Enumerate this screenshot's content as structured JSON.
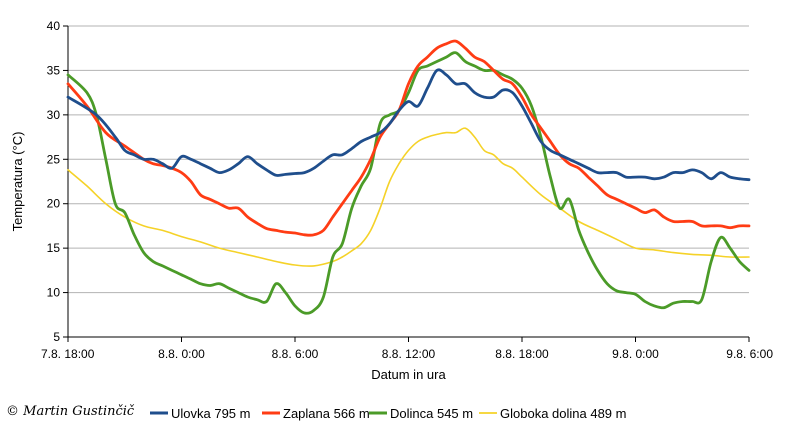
{
  "copyright": "© Martin Gustinčič",
  "chart_data": {
    "type": "line",
    "xlabel": "Datum in ura",
    "ylabel": "Temperatura (°C)",
    "ylim": [
      5,
      40
    ],
    "y_ticks": [
      5,
      10,
      15,
      20,
      25,
      30,
      35,
      40
    ],
    "x_range": [
      "7.8. 18:00",
      "9.8. 6:00"
    ],
    "x_ticks": [
      "7.8. 18:00",
      "8.8. 0:00",
      "8.8. 6:00",
      "8.8. 12:00",
      "8.8. 18:00",
      "9.8. 0:00",
      "9.8. 6:00"
    ],
    "grid": "horizontal",
    "legend_position": "bottom",
    "series": [
      {
        "name": "Ulovka 795 m",
        "color": "#1f4e8c",
        "x": [
          "7.8. 18:00",
          "7.8. 19:30",
          "7.8. 20:30",
          "7.8. 21:00",
          "7.8. 21:30",
          "7.8. 22:00",
          "7.8. 22:30",
          "7.8. 23:00",
          "7.8. 23:30",
          "8.8. 0:00",
          "8.8. 0:30",
          "8.8. 1:00",
          "8.8. 1:30",
          "8.8. 2:00",
          "8.8. 2:30",
          "8.8. 3:00",
          "8.8. 3:30",
          "8.8. 4:00",
          "8.8. 4:30",
          "8.8. 5:00",
          "8.8. 5:30",
          "8.8. 6:00",
          "8.8. 6:30",
          "8.8. 7:00",
          "8.8. 7:30",
          "8.8. 8:00",
          "8.8. 8:30",
          "8.8. 9:00",
          "8.8. 9:30",
          "8.8. 10:00",
          "8.8. 10:30",
          "8.8. 11:00",
          "8.8. 11:30",
          "8.8. 12:00",
          "8.8. 12:30",
          "8.8. 13:00",
          "8.8. 13:30",
          "8.8. 14:00",
          "8.8. 14:30",
          "8.8. 15:00",
          "8.8. 15:30",
          "8.8. 16:00",
          "8.8. 16:30",
          "8.8. 17:00",
          "8.8. 17:30",
          "8.8. 18:00",
          "8.8. 18:30",
          "8.8. 19:00",
          "8.8. 19:30",
          "8.8. 20:00",
          "8.8. 20:30",
          "8.8. 21:00",
          "8.8. 21:30",
          "8.8. 22:00",
          "8.8. 22:30",
          "8.8. 23:00",
          "8.8. 23:30",
          "9.8. 0:00",
          "9.8. 0:30",
          "9.8. 1:00",
          "9.8. 1:30",
          "9.8. 2:00",
          "9.8. 2:30",
          "9.8. 3:00",
          "9.8. 3:30",
          "9.8. 4:00",
          "9.8. 4:30",
          "9.8. 5:00",
          "9.8. 5:30",
          "9.8. 6:00"
        ],
        "values": [
          32.0,
          30.0,
          27.5,
          26.0,
          25.5,
          25.0,
          25.0,
          24.5,
          24.0,
          25.3,
          25.0,
          24.5,
          24.0,
          23.5,
          23.8,
          24.5,
          25.3,
          24.5,
          23.8,
          23.2,
          23.3,
          23.4,
          23.5,
          24.0,
          24.8,
          25.5,
          25.5,
          26.2,
          27.0,
          27.5,
          28.0,
          29.0,
          30.5,
          31.5,
          31.0,
          33.0,
          35.0,
          34.5,
          33.5,
          33.5,
          32.5,
          32.0,
          32.0,
          32.8,
          32.5,
          31.0,
          29.0,
          27.0,
          26.0,
          25.5,
          25.0,
          24.5,
          24.0,
          23.5,
          23.5,
          23.5,
          23.0,
          23.0,
          23.0,
          22.8,
          23.0,
          23.5,
          23.5,
          23.8,
          23.5,
          22.8,
          23.5,
          23.0,
          22.8,
          22.7
        ]
      },
      {
        "name": "Zaplana 566 m",
        "color": "#ff3c14",
        "x": [
          "7.8. 18:00",
          "7.8. 19:00",
          "7.8. 20:00",
          "7.8. 21:00",
          "7.8. 22:00",
          "7.8. 22:30",
          "7.8. 23:00",
          "7.8. 23:30",
          "8.8. 0:00",
          "8.8. 0:30",
          "8.8. 1:00",
          "8.8. 1:30",
          "8.8. 2:00",
          "8.8. 2:30",
          "8.8. 3:00",
          "8.8. 3:30",
          "8.8. 4:00",
          "8.8. 4:30",
          "8.8. 5:00",
          "8.8. 5:30",
          "8.8. 6:00",
          "8.8. 6:30",
          "8.8. 7:00",
          "8.8. 7:30",
          "8.8. 8:00",
          "8.8. 8:30",
          "8.8. 9:00",
          "8.8. 9:30",
          "8.8. 10:00",
          "8.8. 10:30",
          "8.8. 11:00",
          "8.8. 11:30",
          "8.8. 12:00",
          "8.8. 12:30",
          "8.8. 13:00",
          "8.8. 13:30",
          "8.8. 14:00",
          "8.8. 14:30",
          "8.8. 15:00",
          "8.8. 15:30",
          "8.8. 16:00",
          "8.8. 16:30",
          "8.8. 17:00",
          "8.8. 17:30",
          "8.8. 18:00",
          "8.8. 18:30",
          "8.8. 19:00",
          "8.8. 19:30",
          "8.8. 20:00",
          "8.8. 20:30",
          "8.8. 21:00",
          "8.8. 21:30",
          "8.8. 22:00",
          "8.8. 22:30",
          "8.8. 23:00",
          "8.8. 23:30",
          "9.8. 0:00",
          "9.8. 0:30",
          "9.8. 1:00",
          "9.8. 1:30",
          "9.8. 2:00",
          "9.8. 2:30",
          "9.8. 3:00",
          "9.8. 3:30",
          "9.8. 4:00",
          "9.8. 4:30",
          "9.8. 5:00",
          "9.8. 5:30",
          "9.8. 6:00"
        ],
        "values": [
          33.5,
          31.0,
          28.0,
          26.5,
          25.0,
          24.5,
          24.3,
          24.0,
          23.5,
          22.5,
          21.0,
          20.5,
          20.0,
          19.5,
          19.5,
          18.5,
          17.8,
          17.2,
          17.0,
          16.8,
          16.7,
          16.5,
          16.5,
          17.0,
          18.5,
          20.0,
          21.5,
          23.0,
          25.0,
          27.5,
          29.0,
          30.5,
          33.5,
          35.5,
          36.5,
          37.5,
          38.0,
          38.3,
          37.5,
          36.5,
          36.0,
          35.0,
          34.0,
          33.5,
          32.0,
          30.0,
          28.5,
          27.0,
          25.5,
          24.5,
          24.0,
          23.0,
          22.0,
          21.0,
          20.5,
          20.0,
          19.5,
          19.0,
          19.3,
          18.5,
          18.0,
          18.0,
          18.0,
          17.5,
          17.5,
          17.5,
          17.3,
          17.5,
          17.5
        ]
      },
      {
        "name": "Dolinca 545 m",
        "color": "#4b9b28",
        "x": [
          "7.8. 18:00",
          "7.8. 19:00",
          "7.8. 19:30",
          "7.8. 20:00",
          "7.8. 20:30",
          "7.8. 21:00",
          "7.8. 21:30",
          "7.8. 22:00",
          "7.8. 22:30",
          "7.8. 23:00",
          "7.8. 23:30",
          "8.8. 0:00",
          "8.8. 0:30",
          "8.8. 1:00",
          "8.8. 1:30",
          "8.8. 2:00",
          "8.8. 2:30",
          "8.8. 3:00",
          "8.8. 3:30",
          "8.8. 4:00",
          "8.8. 4:30",
          "8.8. 5:00",
          "8.8. 5:30",
          "8.8. 6:00",
          "8.8. 6:30",
          "8.8. 7:00",
          "8.8. 7:30",
          "8.8. 8:00",
          "8.8. 8:30",
          "8.8. 9:00",
          "8.8. 9:30",
          "8.8. 10:00",
          "8.8. 10:30",
          "8.8. 11:00",
          "8.8. 11:30",
          "8.8. 12:00",
          "8.8. 12:30",
          "8.8. 13:00",
          "8.8. 13:30",
          "8.8. 14:00",
          "8.8. 14:30",
          "8.8. 15:00",
          "8.8. 15:30",
          "8.8. 16:00",
          "8.8. 16:30",
          "8.8. 17:00",
          "8.8. 17:30",
          "8.8. 18:00",
          "8.8. 18:30",
          "8.8. 19:00",
          "8.8. 19:30",
          "8.8. 20:00",
          "8.8. 20:30",
          "8.8. 21:00",
          "8.8. 21:30",
          "8.8. 22:00",
          "8.8. 22:30",
          "8.8. 23:00",
          "8.8. 23:30",
          "9.8. 0:00",
          "9.8. 0:30",
          "9.8. 1:00",
          "9.8. 1:30",
          "9.8. 2:00",
          "9.8. 2:30",
          "9.8. 3:00",
          "9.8. 3:30",
          "9.8. 4:00",
          "9.8. 4:30",
          "9.8. 5:00",
          "9.8. 5:30",
          "9.8. 6:00"
        ],
        "values": [
          34.5,
          32.5,
          30.0,
          25.0,
          20.0,
          19.0,
          16.5,
          14.5,
          13.5,
          13.0,
          12.5,
          12.0,
          11.5,
          11.0,
          10.8,
          11.0,
          10.5,
          10.0,
          9.5,
          9.2,
          9.0,
          11.0,
          10.0,
          8.5,
          7.7,
          8.0,
          9.5,
          14.0,
          15.5,
          19.5,
          22.0,
          24.0,
          29.0,
          30.0,
          30.5,
          32.5,
          35.0,
          35.5,
          36.0,
          36.5,
          37.0,
          36.0,
          35.5,
          35.0,
          35.0,
          34.5,
          34.0,
          33.0,
          31.0,
          27.5,
          23.0,
          19.5,
          20.5,
          17.0,
          14.5,
          12.5,
          11.0,
          10.2,
          10.0,
          9.8,
          9.0,
          8.5,
          8.3,
          8.8,
          9.0,
          9.0,
          9.2,
          13.5,
          16.2,
          15.0,
          13.5,
          12.5
        ]
      },
      {
        "name": "Globoka dolina 489 m",
        "color": "#f5d228",
        "x": [
          "7.8. 18:00",
          "7.8. 19:00",
          "7.8. 20:00",
          "7.8. 21:00",
          "7.8. 22:00",
          "7.8. 23:00",
          "8.8. 0:00",
          "8.8. 1:00",
          "8.8. 2:00",
          "8.8. 3:00",
          "8.8. 4:00",
          "8.8. 5:00",
          "8.8. 6:00",
          "8.8. 7:00",
          "8.8. 8:00",
          "8.8. 8:30",
          "8.8. 9:00",
          "8.8. 9:30",
          "8.8. 10:00",
          "8.8. 10:30",
          "8.8. 11:00",
          "8.8. 11:30",
          "8.8. 12:00",
          "8.8. 12:30",
          "8.8. 13:00",
          "8.8. 13:30",
          "8.8. 14:00",
          "8.8. 14:30",
          "8.8. 15:00",
          "8.8. 15:30",
          "8.8. 16:00",
          "8.8. 16:30",
          "8.8. 17:00",
          "8.8. 17:30",
          "8.8. 18:00",
          "8.8. 19:00",
          "8.8. 20:00",
          "8.8. 21:00",
          "8.8. 22:00",
          "8.8. 23:00",
          "9.8. 0:00",
          "9.8. 1:00",
          "9.8. 2:00",
          "9.8. 3:00",
          "9.8. 4:00",
          "9.8. 5:00",
          "9.8. 6:00"
        ],
        "values": [
          23.8,
          22.0,
          20.0,
          18.5,
          17.5,
          17.0,
          16.3,
          15.7,
          15.0,
          14.5,
          14.0,
          13.5,
          13.1,
          13.0,
          13.5,
          14.0,
          14.7,
          15.5,
          17.0,
          19.5,
          22.5,
          24.5,
          26.0,
          27.0,
          27.5,
          27.8,
          28.0,
          28.0,
          28.5,
          27.5,
          26.0,
          25.5,
          24.5,
          24.0,
          23.0,
          21.0,
          19.5,
          18.0,
          17.0,
          16.0,
          15.0,
          14.8,
          14.5,
          14.3,
          14.2,
          14.0,
          14.0
        ]
      }
    ]
  }
}
